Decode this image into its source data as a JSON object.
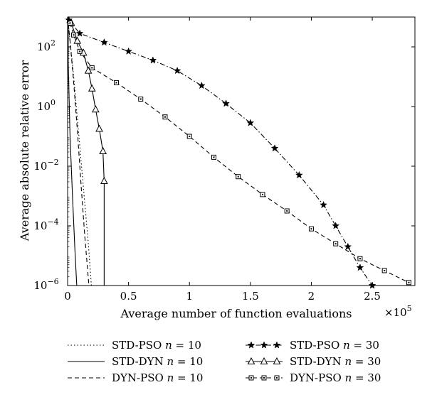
{
  "chart_data": {
    "type": "line",
    "xlabel": "Average number of function evaluations",
    "ylabel": "Average absolute relative error",
    "x_multiplier_label": "×10",
    "x_multiplier_exp": "5",
    "xlim": [
      0,
      2.85
    ],
    "ylim_log10": [
      -6,
      3
    ],
    "y_scale": "log",
    "grid": false,
    "legend_placement": "bottom",
    "x_ticks": [
      {
        "v": 0,
        "label": "0"
      },
      {
        "v": 0.5,
        "label": "0.5"
      },
      {
        "v": 1,
        "label": "1"
      },
      {
        "v": 1.5,
        "label": "1.5"
      },
      {
        "v": 2,
        "label": "2"
      },
      {
        "v": 2.5,
        "label": "2.5"
      }
    ],
    "y_ticks": [
      {
        "e": 2,
        "base": "10",
        "exp": "2"
      },
      {
        "e": 0,
        "base": "10",
        "exp": "0"
      },
      {
        "e": -2,
        "base": "10",
        "exp": "−2"
      },
      {
        "e": -4,
        "base": "10",
        "exp": "−4"
      },
      {
        "e": -6,
        "base": "10",
        "exp": "−6"
      }
    ],
    "series": [
      {
        "name": "STD-PSO",
        "n_label": "n",
        "n_value": "= 10",
        "style": "dotted",
        "marker": "none",
        "x": [
          0,
          0.02,
          0.05,
          0.08,
          0.11,
          0.14,
          0.17,
          0.195
        ],
        "log10_y": [
          3,
          2.2,
          1.0,
          -0.4,
          -1.8,
          -3.2,
          -4.6,
          -6
        ]
      },
      {
        "name": "STD-DYN",
        "n_label": "n",
        "n_value": "= 10",
        "style": "solid",
        "marker": "none",
        "x": [
          0.005,
          0.005,
          0.02,
          0.04,
          0.06,
          0.075
        ],
        "log10_y": [
          3,
          1.5,
          -1.0,
          -3.0,
          -4.8,
          -6
        ]
      },
      {
        "name": "DYN-PSO",
        "n_label": "n",
        "n_value": "= 10",
        "style": "dashed",
        "marker": "none",
        "x": [
          0,
          0.02,
          0.05,
          0.08,
          0.11,
          0.14,
          0.175
        ],
        "log10_y": [
          3,
          2.2,
          0.8,
          -0.8,
          -2.6,
          -4.3,
          -6
        ]
      },
      {
        "name": "STD-PSO",
        "n_label": "n",
        "n_value": "= 30",
        "style": "dashdot",
        "marker": "star",
        "x": [
          0.01,
          0.1,
          0.3,
          0.5,
          0.7,
          0.9,
          1.1,
          1.3,
          1.5,
          1.7,
          1.9,
          2.1,
          2.2,
          2.3,
          2.4,
          2.5
        ],
        "log10_y": [
          2.9,
          2.45,
          2.15,
          1.85,
          1.55,
          1.2,
          0.7,
          0.1,
          -0.55,
          -1.4,
          -2.3,
          -3.3,
          -4.0,
          -4.7,
          -5.4,
          -6.0
        ]
      },
      {
        "name": "STD-DYN",
        "n_label": "n",
        "n_value": "= 30",
        "style": "solid",
        "marker": "triangle",
        "x": [
          0.03,
          0.08,
          0.13,
          0.17,
          0.2,
          0.23,
          0.26,
          0.29,
          0.3,
          0.3
        ],
        "log10_y": [
          2.8,
          2.2,
          1.8,
          1.2,
          0.6,
          -0.1,
          -0.75,
          -1.5,
          -2.5,
          -6
        ]
      },
      {
        "name": "DYN-PSO",
        "n_label": "n",
        "n_value": "= 30",
        "style": "dashed",
        "marker": "square",
        "x": [
          0.02,
          0.05,
          0.1,
          0.2,
          0.4,
          0.6,
          0.8,
          1.0,
          1.2,
          1.4,
          1.6,
          1.8,
          2.0,
          2.2,
          2.4,
          2.6,
          2.8
        ],
        "log10_y": [
          2.8,
          2.4,
          1.85,
          1.3,
          0.8,
          0.25,
          -0.35,
          -1.0,
          -1.7,
          -2.35,
          -2.95,
          -3.5,
          -4.1,
          -4.6,
          -5.1,
          -5.5,
          -5.9
        ]
      }
    ]
  }
}
